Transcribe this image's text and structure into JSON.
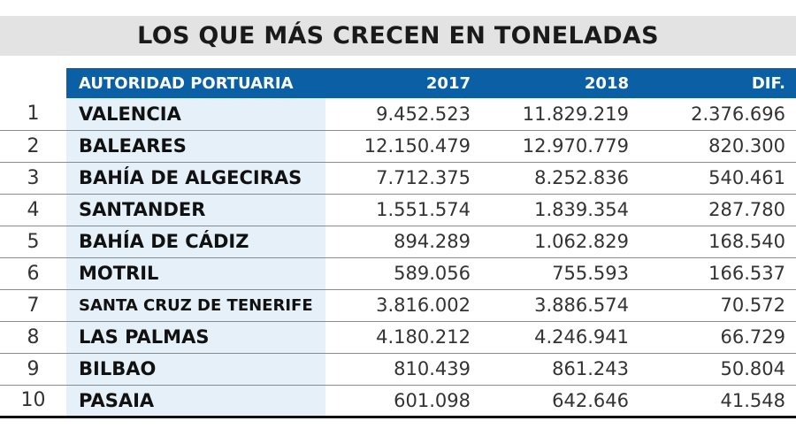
{
  "title": "LOS QUE MÁS CRECEN EN TONELADAS",
  "chart_data": {
    "type": "table",
    "title": "LOS QUE MÁS CRECEN EN TONELADAS",
    "columns": [
      "",
      "AUTORIDAD PORTUARIA",
      "2017",
      "2018",
      "DIF."
    ],
    "rows": [
      {
        "rank": "1",
        "name": "VALENCIA",
        "y2017": "9.452.523",
        "y2018": "11.829.219",
        "dif": "2.376.696"
      },
      {
        "rank": "2",
        "name": "BALEARES",
        "y2017": "12.150.479",
        "y2018": "12.970.779",
        "dif": "820.300"
      },
      {
        "rank": "3",
        "name": "BAHÍA DE ALGECIRAS",
        "y2017": "7.712.375",
        "y2018": "8.252.836",
        "dif": "540.461"
      },
      {
        "rank": "4",
        "name": "SANTANDER",
        "y2017": "1.551.574",
        "y2018": "1.839.354",
        "dif": "287.780"
      },
      {
        "rank": "5",
        "name": "BAHÍA DE CÁDIZ",
        "y2017": "894.289",
        "y2018": "1.062.829",
        "dif": "168.540"
      },
      {
        "rank": "6",
        "name": "MOTRIL",
        "y2017": "589.056",
        "y2018": "755.593",
        "dif": "166.537"
      },
      {
        "rank": "7",
        "name": "SANTA CRUZ DE TENERIFE",
        "y2017": "3.816.002",
        "y2018": "3.886.574",
        "dif": "70.572"
      },
      {
        "rank": "8",
        "name": "LAS PALMAS",
        "y2017": "4.180.212",
        "y2018": "4.246.941",
        "dif": "66.729"
      },
      {
        "rank": "9",
        "name": "BILBAO",
        "y2017": "810.439",
        "y2018": "861.243",
        "dif": "50.804"
      },
      {
        "rank": "10",
        "name": "PASAIA",
        "y2017": "601.098",
        "y2018": "642.646",
        "dif": "41.548"
      }
    ]
  },
  "colors": {
    "header_bg": "#0b5fa5",
    "title_bg": "#e3e3e3",
    "name_col_bg": "#e6f0f9"
  }
}
